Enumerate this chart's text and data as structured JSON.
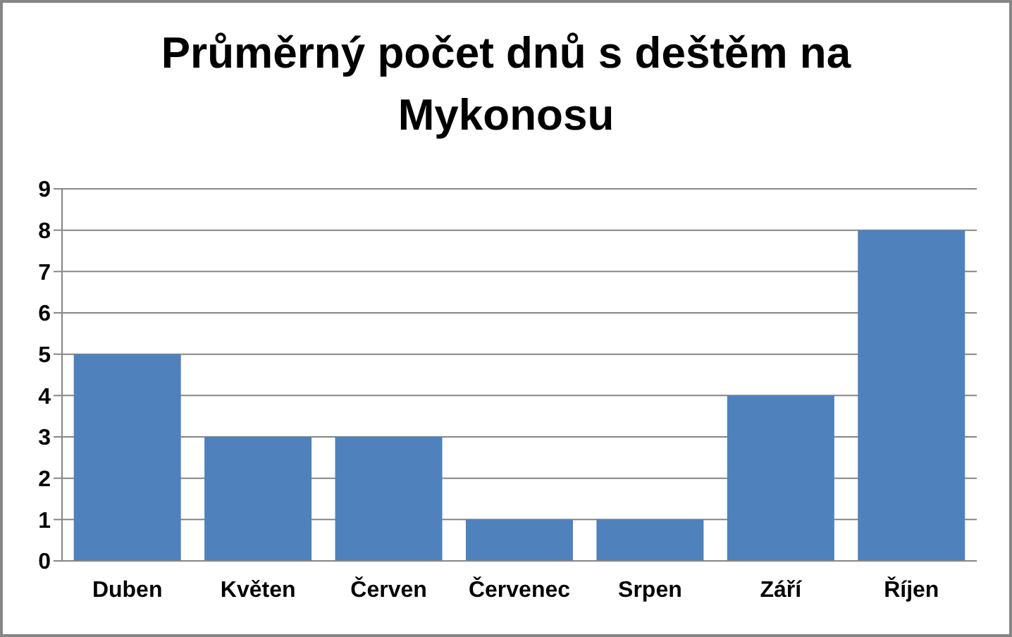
{
  "chart_data": {
    "type": "bar",
    "title": "Průměrný počet dnů s deštěm na Mykonosu",
    "categories": [
      "Duben",
      "Květen",
      "Červen",
      "Červenec",
      "Srpen",
      "Září",
      "Říjen"
    ],
    "values": [
      5,
      3,
      3,
      1,
      1,
      4,
      8
    ],
    "color": "#4f81bd",
    "ylim": [
      0,
      9
    ],
    "yticks": [
      0,
      1,
      2,
      3,
      4,
      5,
      6,
      7,
      8,
      9
    ],
    "grid": "y"
  }
}
